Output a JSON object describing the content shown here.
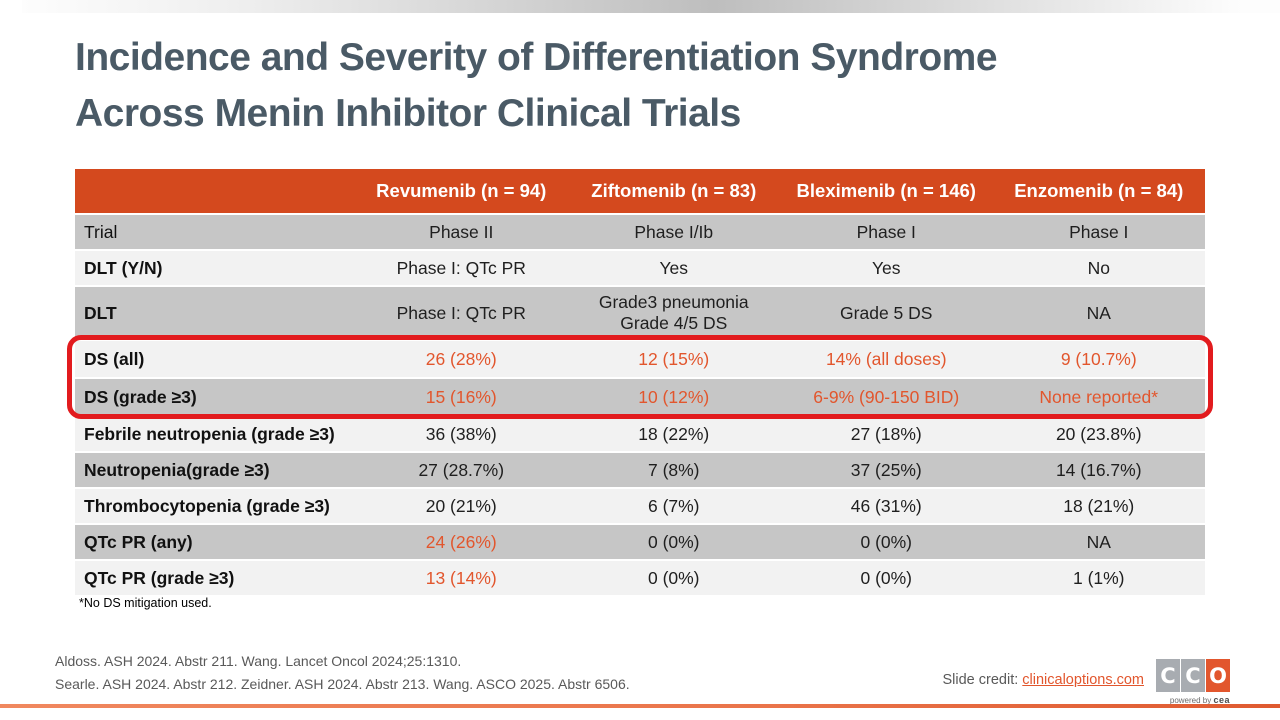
{
  "slide": {
    "title_line1": "Incidence and Severity of Differentiation Syndrome",
    "title_line2": "Across Menin Inhibitor Clinical Trials"
  },
  "table": {
    "columns": [
      "",
      "Revumenib (n = 94)",
      "Ziftomenib (n = 83)",
      "Bleximenib (n = 146)",
      "Enzomenib (n = 84)"
    ],
    "rows": [
      {
        "label": "Trial",
        "values": [
          "Phase II",
          "Phase I/Ib",
          "Phase I",
          "Phase I"
        ]
      },
      {
        "label": "DLT (Y/N)",
        "values": [
          "Phase I: QTc PR",
          "Yes",
          "Yes",
          "No"
        ]
      },
      {
        "label": "DLT",
        "values": [
          "Phase I: QTc PR",
          "Grade3 pneumonia\nGrade 4/5 DS",
          "Grade 5 DS",
          "NA"
        ]
      },
      {
        "label": "DS (all)",
        "values": [
          "26 (28%)",
          "12 (15%)",
          "14% (all doses)",
          "9 (10.7%)"
        ]
      },
      {
        "label": "DS (grade ≥3)",
        "values": [
          "15 (16%)",
          "10 (12%)",
          "6-9% (90-150 BID)",
          "None reported*"
        ]
      },
      {
        "label": "Febrile neutropenia (grade ≥3)",
        "values": [
          "36 (38%)",
          "18 (22%)",
          "27 (18%)",
          "20 (23.8%)"
        ]
      },
      {
        "label": "Neutropenia(grade ≥3)",
        "values": [
          "27 (28.7%)",
          "7 (8%)",
          "37 (25%)",
          "14 (16.7%)"
        ]
      },
      {
        "label": "Thrombocytopenia (grade ≥3)",
        "values": [
          "20 (21%)",
          "6 (7%)",
          "46 (31%)",
          "18 (21%)"
        ]
      },
      {
        "label": "QTc PR (any)",
        "values": [
          "24 (26%)",
          "0 (0%)",
          "0 (0%)",
          "NA"
        ]
      },
      {
        "label": "QTc PR (grade ≥3)",
        "values": [
          "13 (14%)",
          "0 (0%)",
          "0 (0%)",
          "1 (1%)"
        ]
      }
    ],
    "highlight_note": "red box around DS (all) and DS (grade ≥3) rows"
  },
  "footnote": "*No DS mitigation used.",
  "references": {
    "line1": "Aldoss. ASH 2024. Abstr 211. Wang. Lancet Oncol 2024;25:1310.",
    "line2": "Searle. ASH 2024. Abstr 212. Zeidner. ASH 2024. Abstr 213. Wang. ASCO 2025. Abstr 6506."
  },
  "credit": {
    "label": "Slide credit: ",
    "link": "clinicaloptions.com"
  },
  "logo": {
    "letters": [
      "C",
      "C",
      "O"
    ],
    "tagline_prefix": "powered by ",
    "tagline_brand": "cea"
  },
  "colors": {
    "header_orange": "#d4491e",
    "accent_orange": "#e2562d",
    "highlight_red": "#e21b1e",
    "row_dark": "#c6c6c6",
    "row_light": "#f2f2f2",
    "title_slate": "#4a5a66",
    "footer_gray": "#595959"
  }
}
